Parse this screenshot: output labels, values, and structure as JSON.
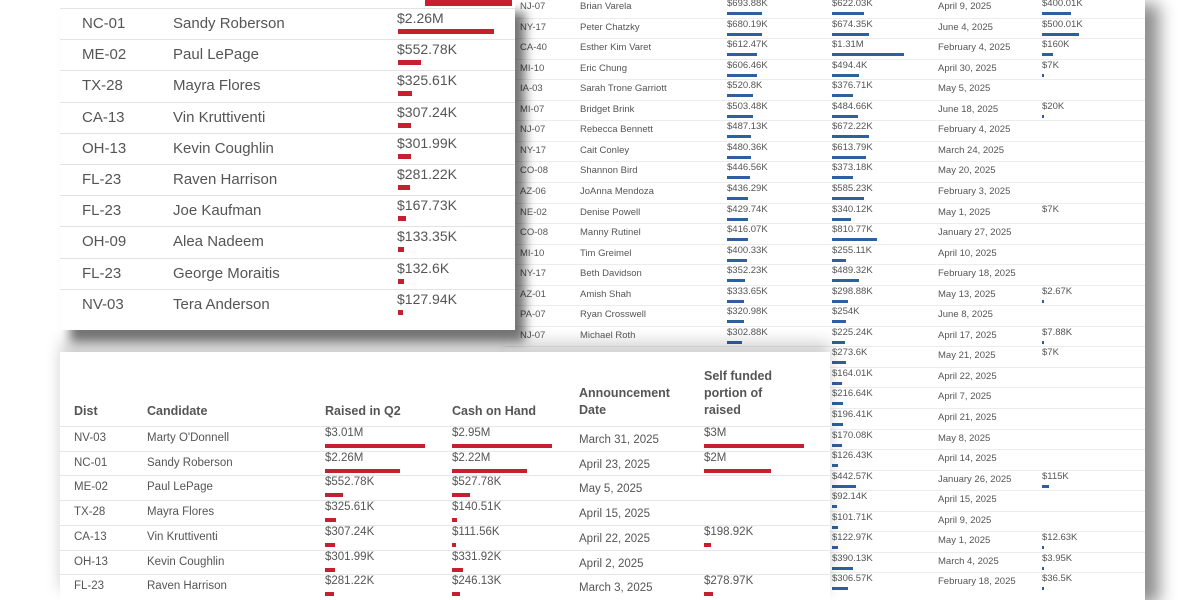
{
  "cardA": {
    "rows": [
      {
        "dist": "NC-01",
        "name": "Sandy Roberson",
        "raised": "$2.26M",
        "raised_frac": 0.75
      },
      {
        "dist": "ME-02",
        "name": "Paul LePage",
        "raised": "$552.78K",
        "raised_frac": 0.18
      },
      {
        "dist": "TX-28",
        "name": "Mayra Flores",
        "raised": "$325.61K",
        "raised_frac": 0.11
      },
      {
        "dist": "CA-13",
        "name": "Vin Kruttiventi",
        "raised": "$307.24K",
        "raised_frac": 0.1
      },
      {
        "dist": "OH-13",
        "name": "Kevin Coughlin",
        "raised": "$301.99K",
        "raised_frac": 0.1
      },
      {
        "dist": "FL-23",
        "name": "Raven Harrison",
        "raised": "$281.22K",
        "raised_frac": 0.09
      },
      {
        "dist": "FL-23",
        "name": "Joe Kaufman",
        "raised": "$167.73K",
        "raised_frac": 0.06
      },
      {
        "dist": "OH-09",
        "name": "Alea Nadeem",
        "raised": "$133.35K",
        "raised_frac": 0.045
      },
      {
        "dist": "FL-23",
        "name": "George Moraitis",
        "raised": "$132.6K",
        "raised_frac": 0.044
      },
      {
        "dist": "NV-03",
        "name": "Tera Anderson",
        "raised": "$127.94K",
        "raised_frac": 0.042
      }
    ]
  },
  "cardB": {
    "rows": [
      {
        "dist": "NJ-07",
        "name": "Brian Varela",
        "raised": "$693.88K",
        "raised_frac": 0.23,
        "cash": "$622.03K",
        "cash_frac": 0.2,
        "date": "April 9, 2025",
        "self": "$400.01K",
        "self_frac": 0.13
      },
      {
        "dist": "NY-17",
        "name": "Peter Chatzky",
        "raised": "$680.19K",
        "raised_frac": 0.23,
        "cash": "$674.35K",
        "cash_frac": 0.23,
        "date": "June 4, 2025",
        "self": "$500.01K",
        "self_frac": 0.17
      },
      {
        "dist": "CA-40",
        "name": "Esther Kim Varet",
        "raised": "$612.47K",
        "raised_frac": 0.2,
        "cash": "$1.31M",
        "cash_frac": 0.45,
        "date": "February 4, 2025",
        "self": "$160K",
        "self_frac": 0.05
      },
      {
        "dist": "MI-10",
        "name": "Eric Chung",
        "raised": "$606.46K",
        "raised_frac": 0.2,
        "cash": "$494.4K",
        "cash_frac": 0.17,
        "date": "April 30, 2025",
        "self": "$7K",
        "self_frac": 0.005
      },
      {
        "dist": "IA-03",
        "name": "Sarah Trone Garriott",
        "raised": "$520.8K",
        "raised_frac": 0.17,
        "cash": "$376.71K",
        "cash_frac": 0.13,
        "date": "May 5, 2025",
        "self": "",
        "self_frac": 0
      },
      {
        "dist": "MI-07",
        "name": "Bridget Brink",
        "raised": "$503.48K",
        "raised_frac": 0.17,
        "cash": "$484.66K",
        "cash_frac": 0.16,
        "date": "June 18, 2025",
        "self": "$20K",
        "self_frac": 0.007
      },
      {
        "dist": "NJ-07",
        "name": "Rebecca Bennett",
        "raised": "$487.13K",
        "raised_frac": 0.16,
        "cash": "$672.22K",
        "cash_frac": 0.23,
        "date": "February 4, 2025",
        "self": "",
        "self_frac": 0
      },
      {
        "dist": "NY-17",
        "name": "Cait Conley",
        "raised": "$480.36K",
        "raised_frac": 0.16,
        "cash": "$613.79K",
        "cash_frac": 0.21,
        "date": "March 24, 2025",
        "self": "",
        "self_frac": 0
      },
      {
        "dist": "CO-08",
        "name": "Shannon Bird",
        "raised": "$446.56K",
        "raised_frac": 0.15,
        "cash": "$373.18K",
        "cash_frac": 0.13,
        "date": "May 20, 2025",
        "self": "",
        "self_frac": 0
      },
      {
        "dist": "AZ-06",
        "name": "JoAnna Mendoza",
        "raised": "$436.29K",
        "raised_frac": 0.14,
        "cash": "$585.23K",
        "cash_frac": 0.2,
        "date": "February 3, 2025",
        "self": "",
        "self_frac": 0
      },
      {
        "dist": "NE-02",
        "name": "Denise Powell",
        "raised": "$429.74K",
        "raised_frac": 0.14,
        "cash": "$340.12K",
        "cash_frac": 0.12,
        "date": "May 1, 2025",
        "self": "$7K",
        "self_frac": 0
      },
      {
        "dist": "CO-08",
        "name": "Manny Rutinel",
        "raised": "$416.07K",
        "raised_frac": 0.14,
        "cash": "$810.77K",
        "cash_frac": 0.28,
        "date": "January 27, 2025",
        "self": "",
        "self_frac": 0
      },
      {
        "dist": "MI-10",
        "name": "Tim Greimel",
        "raised": "$400.33K",
        "raised_frac": 0.13,
        "cash": "$255.11K",
        "cash_frac": 0.09,
        "date": "April 10, 2025",
        "self": "",
        "self_frac": 0
      },
      {
        "dist": "NY-17",
        "name": "Beth Davidson",
        "raised": "$352.23K",
        "raised_frac": 0.12,
        "cash": "$489.32K",
        "cash_frac": 0.17,
        "date": "February 18, 2025",
        "self": "",
        "self_frac": 0
      },
      {
        "dist": "AZ-01",
        "name": "Amish Shah",
        "raised": "$333.65K",
        "raised_frac": 0.11,
        "cash": "$298.88K",
        "cash_frac": 0.1,
        "date": "May 13, 2025",
        "self": "$2.67K",
        "self_frac": 0.003
      },
      {
        "dist": "PA-07",
        "name": "Ryan Crosswell",
        "raised": "$320.98K",
        "raised_frac": 0.11,
        "cash": "$254K",
        "cash_frac": 0.09,
        "date": "June 8, 2025",
        "self": "",
        "self_frac": 0
      },
      {
        "dist": "NJ-07",
        "name": "Michael Roth",
        "raised": "$302.88K",
        "raised_frac": 0.1,
        "cash": "$225.24K",
        "cash_frac": 0.08,
        "date": "April 17, 2025",
        "self": "$7.88K",
        "self_frac": 0.003
      },
      {
        "dist": "",
        "name": "",
        "raised": "",
        "raised_frac": 0,
        "cash": "$273.6K",
        "cash_frac": 0.09,
        "date": "May 21, 2025",
        "self": "$7K",
        "self_frac": 0
      },
      {
        "dist": "",
        "name": "",
        "raised": "",
        "raised_frac": 0,
        "cash": "$164.01K",
        "cash_frac": 0.06,
        "date": "April 22, 2025",
        "self": "",
        "self_frac": 0
      },
      {
        "dist": "",
        "name": "",
        "raised": "",
        "raised_frac": 0,
        "cash": "$216.64K",
        "cash_frac": 0.07,
        "date": "April 7, 2025",
        "self": "",
        "self_frac": 0
      },
      {
        "dist": "",
        "name": "",
        "raised": "",
        "raised_frac": 0,
        "cash": "$196.41K",
        "cash_frac": 0.07,
        "date": "April 21, 2025",
        "self": "",
        "self_frac": 0
      },
      {
        "dist": "",
        "name": "",
        "raised": "",
        "raised_frac": 0,
        "cash": "$170.08K",
        "cash_frac": 0.06,
        "date": "May 8, 2025",
        "self": "",
        "self_frac": 0
      },
      {
        "dist": "",
        "name": "",
        "raised": "",
        "raised_frac": 0,
        "cash": "$126.43K",
        "cash_frac": 0.04,
        "date": "April 14, 2025",
        "self": "",
        "self_frac": 0
      },
      {
        "dist": "",
        "name": "",
        "raised": "",
        "raised_frac": 0,
        "cash": "$442.57K",
        "cash_frac": 0.15,
        "date": "January 26, 2025",
        "self": "$115K",
        "self_frac": 0.03
      },
      {
        "dist": "",
        "name": "",
        "raised": "",
        "raised_frac": 0,
        "cash": "$92.14K",
        "cash_frac": 0.03,
        "date": "April 15, 2025",
        "self": "",
        "self_frac": 0
      },
      {
        "dist": "",
        "name": "",
        "raised": "",
        "raised_frac": 0,
        "cash": "$101.71K",
        "cash_frac": 0.035,
        "date": "April 9, 2025",
        "self": "",
        "self_frac": 0
      },
      {
        "dist": "",
        "name": "",
        "raised": "",
        "raised_frac": 0,
        "cash": "$122.97K",
        "cash_frac": 0.04,
        "date": "May 1, 2025",
        "self": "$12.63K",
        "self_frac": 0.004
      },
      {
        "dist": "",
        "name": "",
        "raised": "",
        "raised_frac": 0,
        "cash": "$390.13K",
        "cash_frac": 0.13,
        "date": "March 4, 2025",
        "self": "$3.95K",
        "self_frac": 0.002
      },
      {
        "dist": "",
        "name": "",
        "raised": "",
        "raised_frac": 0,
        "cash": "$306.57K",
        "cash_frac": 0.1,
        "date": "February 18, 2025",
        "self": "$36.5K",
        "self_frac": 0.01
      }
    ]
  },
  "cardC": {
    "headers": {
      "dist": "Dist",
      "candidate": "Candidate",
      "raised": "Raised in Q2",
      "cash": "Cash on Hand",
      "announcement": "Announcement Date",
      "self_funded": "Self funded portion of raised"
    },
    "rows": [
      {
        "dist": "NV-03",
        "name": "Marty O'Donnell",
        "raised": "$3.01M",
        "raised_frac": 1.0,
        "cash": "$2.95M",
        "cash_frac": 1.0,
        "date": "March 31, 2025",
        "self": "$3M",
        "self_frac": 1.0
      },
      {
        "dist": "NC-01",
        "name": "Sandy Roberson",
        "raised": "$2.26M",
        "raised_frac": 0.75,
        "cash": "$2.22M",
        "cash_frac": 0.75,
        "date": "April 23, 2025",
        "self": "$2M",
        "self_frac": 0.67
      },
      {
        "dist": "ME-02",
        "name": "Paul LePage",
        "raised": "$552.78K",
        "raised_frac": 0.18,
        "cash": "$527.78K",
        "cash_frac": 0.18,
        "date": "May 5, 2025",
        "self": "",
        "self_frac": 0
      },
      {
        "dist": "TX-28",
        "name": "Mayra Flores",
        "raised": "$325.61K",
        "raised_frac": 0.11,
        "cash": "$140.51K",
        "cash_frac": 0.05,
        "date": "April 15, 2025",
        "self": "",
        "self_frac": 0
      },
      {
        "dist": "CA-13",
        "name": "Vin Kruttiventi",
        "raised": "$307.24K",
        "raised_frac": 0.1,
        "cash": "$111.56K",
        "cash_frac": 0.04,
        "date": "April 22, 2025",
        "self": "$198.92K",
        "self_frac": 0.066
      },
      {
        "dist": "OH-13",
        "name": "Kevin Coughlin",
        "raised": "$301.99K",
        "raised_frac": 0.1,
        "cash": "$331.92K",
        "cash_frac": 0.11,
        "date": "April 2, 2025",
        "self": "",
        "self_frac": 0
      },
      {
        "dist": "FL-23",
        "name": "Raven Harrison",
        "raised": "$281.22K",
        "raised_frac": 0.09,
        "cash": "$246.13K",
        "cash_frac": 0.08,
        "date": "March 3, 2025",
        "self": "$278.97K",
        "self_frac": 0.09
      }
    ]
  },
  "colors": {
    "republican_bar": "#c4202f",
    "democrat_bar": "#2e5f9e",
    "text": "#555555",
    "rule": "#e3e3e3"
  }
}
